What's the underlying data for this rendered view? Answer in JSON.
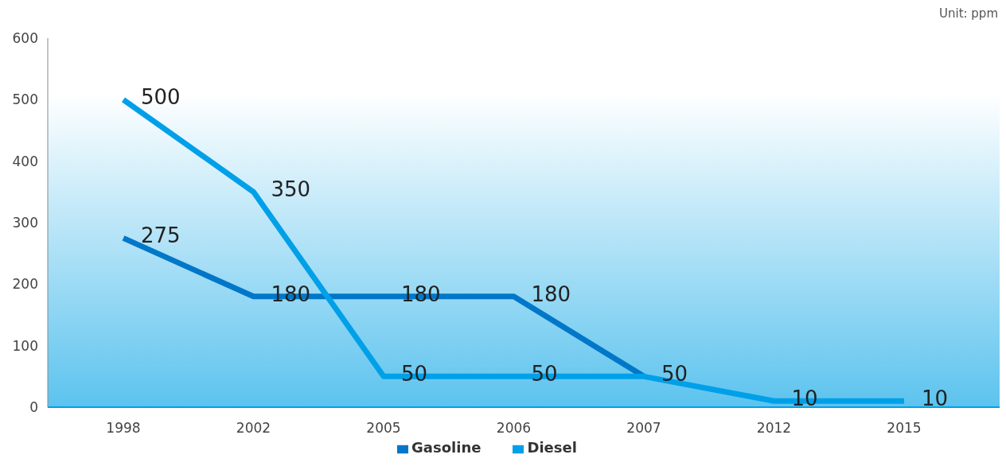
{
  "chart_data": {
    "type": "line",
    "annotations": [
      "Unit: ppm"
    ],
    "categories": [
      "1998",
      "2002",
      "2005",
      "2006",
      "2007",
      "2012",
      "2015"
    ],
    "series": [
      {
        "name": "Gasoline",
        "color": "#0077c8",
        "values": [
          275,
          180,
          180,
          180,
          50,
          null,
          null
        ],
        "value_labels": [
          "275",
          "180",
          "180",
          "180",
          null,
          null,
          null
        ]
      },
      {
        "name": "Diesel",
        "color": "#00a0e9",
        "values": [
          500,
          350,
          50,
          50,
          50,
          10,
          10
        ],
        "value_labels": [
          "500",
          "350",
          "50",
          "50",
          "50",
          "10",
          "10"
        ]
      }
    ],
    "ylim": [
      0,
      600
    ],
    "yticks": [
      0,
      100,
      200,
      300,
      400,
      500,
      600
    ],
    "grid": false,
    "legend": "bottom",
    "marker": "none",
    "line_style": "solid"
  }
}
